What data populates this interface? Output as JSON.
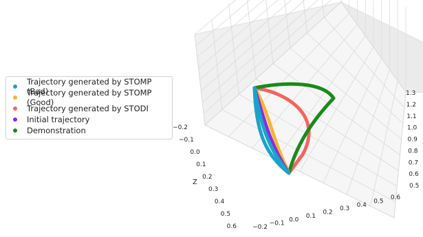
{
  "chart_data": {
    "type": "line",
    "projection": "3d",
    "title": "",
    "xlabel": "",
    "ylabel": "",
    "zlabel": "Z",
    "x_ticks": [
      "−0.2",
      "−0.1",
      "0.0",
      "0.1",
      "0.2",
      "0.3",
      "0.4",
      "0.5",
      "0.6"
    ],
    "y_ticks": [
      "−0.2",
      "−0.1",
      "0.0",
      "0.1",
      "0.2",
      "0.3",
      "0.4",
      "0.5",
      "0.6"
    ],
    "z_ticks": [
      "0.5",
      "0.6",
      "0.7",
      "0.8",
      "0.9",
      "1.0",
      "1.1",
      "1.2",
      "1.3"
    ],
    "xlim": [
      -0.2,
      0.6
    ],
    "ylim": [
      -0.2,
      0.6
    ],
    "zlim": [
      0.5,
      1.3
    ],
    "grid": true,
    "legend_placement": "left",
    "series": [
      {
        "name": "Trajectory generated by STOMP (Bad)",
        "color": "#1aa3c9"
      },
      {
        "name": "Trajectory generated by STOMP (Good)",
        "color": "#f5b531"
      },
      {
        "name": "Trajectory generated by STODI",
        "color": "#f4645f"
      },
      {
        "name": "Initial trajectory",
        "color": "#8a2be2"
      },
      {
        "name": "Demonstration",
        "color": "#1a8a1a"
      }
    ]
  }
}
